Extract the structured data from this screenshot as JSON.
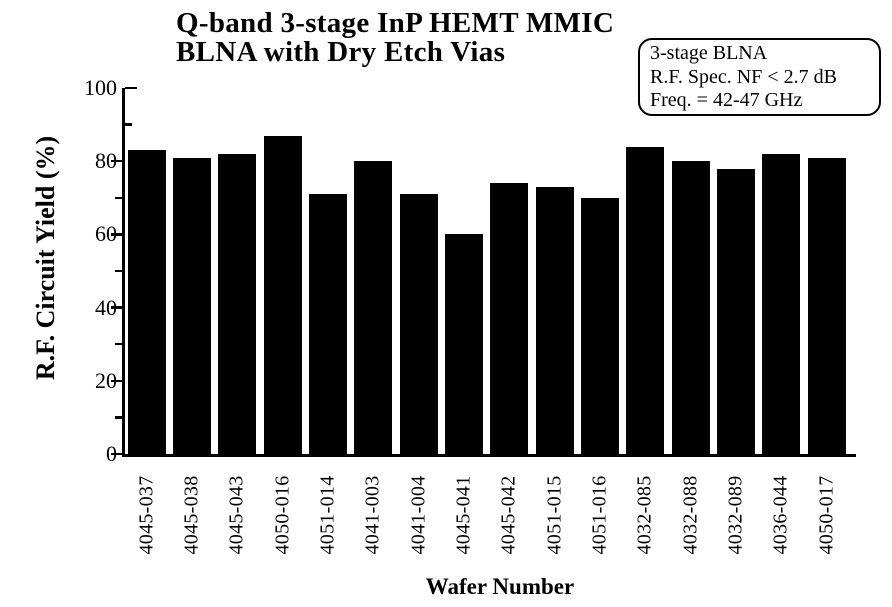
{
  "chart_data": {
    "type": "bar",
    "title": "Q-band 3-stage InP HEMT MMIC BLNA with Dry Etch Vias",
    "title_lines": [
      "Q-band 3-stage InP HEMT MMIC",
      "BLNA with Dry Etch Vias"
    ],
    "xlabel": "Wafer Number",
    "ylabel": "R.F. Circuit Yield (%)",
    "categories": [
      "4045-037",
      "4045-038",
      "4045-043",
      "4050-016",
      "4051-014",
      "4041-003",
      "4041-004",
      "4045-041",
      "4045-042",
      "4051-015",
      "4051-016",
      "4032-085",
      "4032-088",
      "4032-089",
      "4036-044",
      "4050-017"
    ],
    "values": [
      83,
      81,
      82,
      87,
      71,
      80,
      71,
      60,
      74,
      73,
      70,
      84,
      80,
      78,
      82,
      81
    ],
    "ylim": [
      0,
      100
    ],
    "y_major_ticks": [
      0,
      20,
      40,
      60,
      80,
      100
    ],
    "y_minor_ticks": [
      10,
      30,
      50,
      70,
      90
    ],
    "grid": false,
    "legend_position": "top-right",
    "annotations": [
      "3-stage BLNA",
      "R.F. Spec. NF < 2.7 dB",
      "Freq. = 42-47 GHz"
    ],
    "colors": {
      "bar": "#000000",
      "axis": "#000000",
      "text": "#000000",
      "background": "#ffffff"
    }
  }
}
